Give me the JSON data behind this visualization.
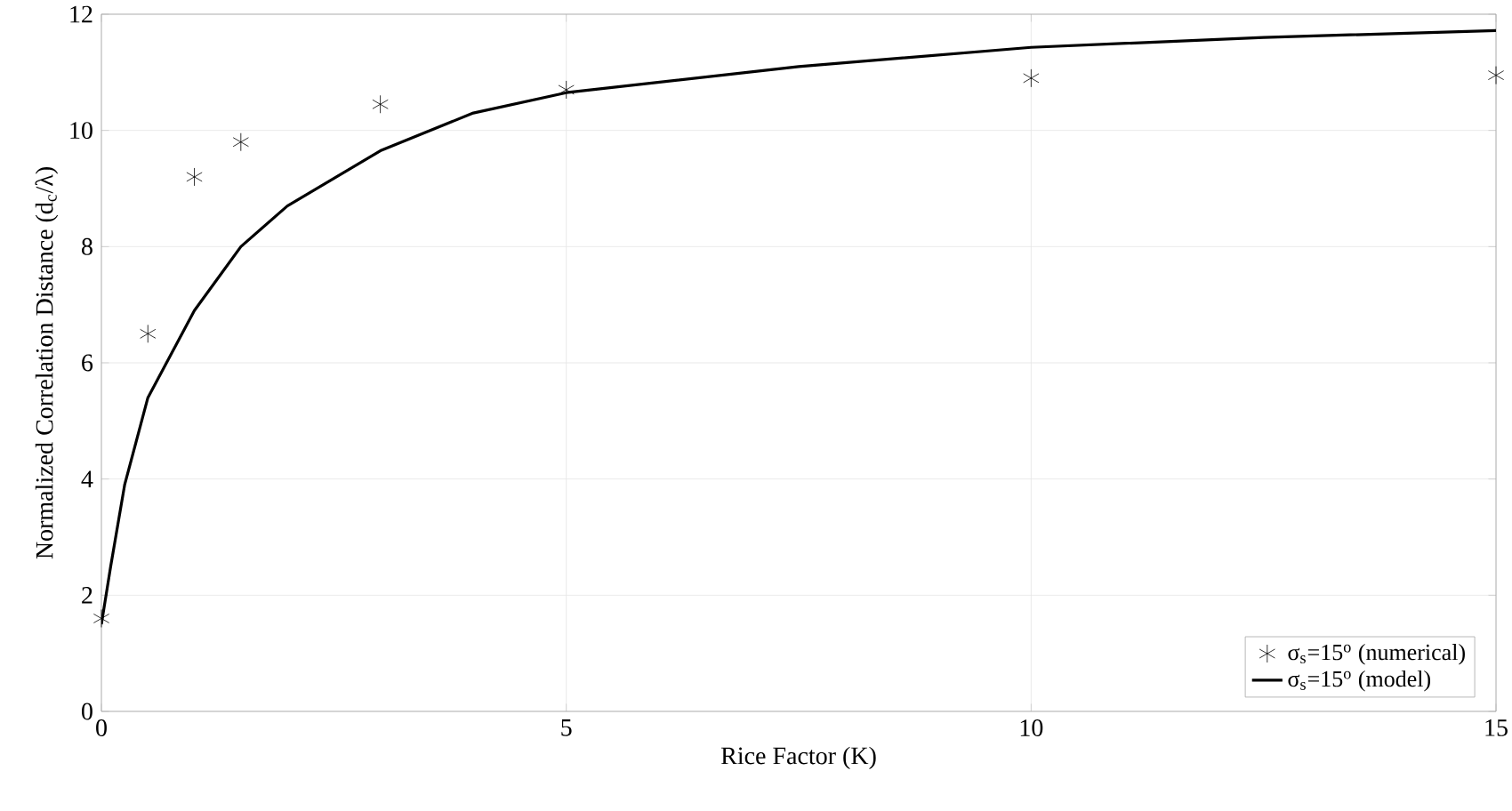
{
  "chart_data": {
    "type": "scatter",
    "xlabel": "Rice Factor (K)",
    "ylabel": "Normalized Correlation Distance (d$_{c}$/λ)",
    "xlim": [
      0,
      15
    ],
    "ylim": [
      0,
      12
    ],
    "xticks": [
      0,
      5,
      10,
      15
    ],
    "yticks": [
      0,
      2,
      4,
      6,
      8,
      10,
      12
    ],
    "grid": true,
    "legend": "bottom right",
    "series": [
      {
        "name": "σ$_{s}$=15$^{o}$ (numerical)",
        "marker": "cross",
        "color": "#000000",
        "x": [
          0,
          0.5,
          1,
          1.5,
          3,
          5,
          10,
          15
        ],
        "values": [
          1.6,
          6.5,
          9.2,
          9.8,
          10.45,
          10.7,
          10.9,
          10.95
        ]
      },
      {
        "name": "σ$_{s}$=15$^{o}$ (model)",
        "type": "line",
        "line_style": "solid",
        "color": "#000000",
        "x": [
          0,
          0.1,
          0.25,
          0.5,
          1,
          1.5,
          2,
          3,
          4,
          5,
          7.5,
          10,
          12.5,
          15
        ],
        "values": [
          1.5,
          2.5,
          3.9,
          5.4,
          6.9,
          8.0,
          8.7,
          9.65,
          10.3,
          10.65,
          11.1,
          11.43,
          11.6,
          11.72
        ]
      }
    ]
  }
}
